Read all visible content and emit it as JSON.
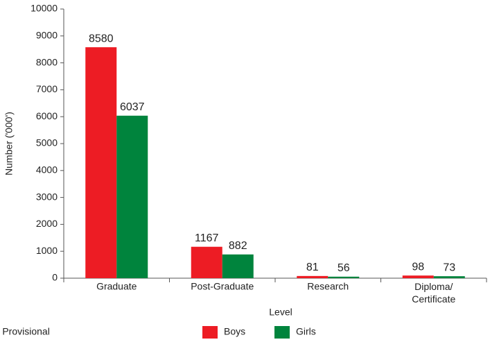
{
  "chart_data": {
    "type": "bar",
    "x_label": "Level",
    "y_label": "Number ('000')",
    "categories": [
      "Graduate",
      "Post-Graduate",
      "Research",
      "Diploma/\nCertificate"
    ],
    "series": [
      {
        "name": "Boys",
        "color": "#ed1c24",
        "values": [
          8580,
          1167,
          81,
          98
        ]
      },
      {
        "name": "Girls",
        "color": "#00843d",
        "values": [
          6037,
          882,
          56,
          73
        ]
      }
    ],
    "ylim": [
      0,
      10000
    ],
    "yticks": [
      0,
      1000,
      2000,
      3000,
      4000,
      5000,
      6000,
      7000,
      8000,
      9000,
      10000
    ],
    "footnote": "* Provisional"
  }
}
